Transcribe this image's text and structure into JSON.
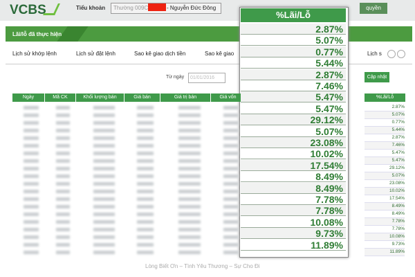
{
  "header": {
    "logo": "VCBS",
    "account_label": "Tiểu khoản",
    "account_type": "Thường 009C",
    "account_name": "- Nguyễn Đức Đông",
    "right_button": "quyền"
  },
  "section_title": "Lãi/lỗ đã thực hiện",
  "tabs": [
    "Lịch sử khớp lệnh",
    "Lịch sử đặt lệnh",
    "Sao kê giao dịch tiền",
    "Sao kê giao",
    "Lịch s"
  ],
  "filter": {
    "from_label": "Từ ngày",
    "from_value": "01/01/2016",
    "update_button": "Cập nhật"
  },
  "table": {
    "columns": [
      "Ngày",
      "Mã CK",
      "Khối lượng bán",
      "Giá bán",
      "Giá trị bán",
      "Giá vốn",
      "%Lãi/Lỗ"
    ],
    "profit_loss": [
      "2.87%",
      "5.07%",
      "0.77%",
      "5.44%",
      "2.87%",
      "7.46%",
      "5.47%",
      "5.47%",
      "29.12%",
      "5.07%",
      "23.08%",
      "10.02%",
      "17.54%",
      "8.49%",
      "8.49%",
      "7.78%",
      "7.78%",
      "10.08%",
      "9.73%",
      "11.89%"
    ]
  },
  "footer": "Lòng Biết Ơn – Tình Yêu Thương – Sự Cho Đi"
}
